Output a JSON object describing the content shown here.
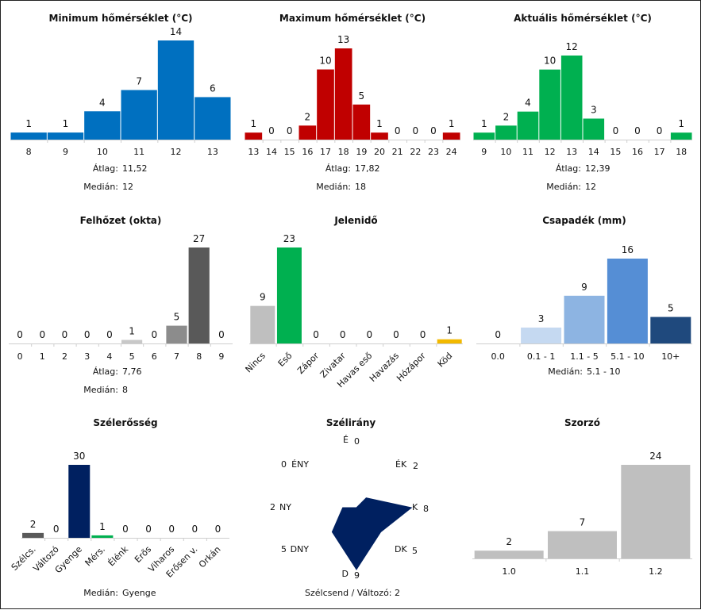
{
  "chart_data": [
    {
      "id": "min",
      "type": "bar",
      "title": "Minimum hőmérséklet (°C)",
      "categories": [
        "8",
        "9",
        "10",
        "11",
        "12",
        "13"
      ],
      "values": [
        1,
        1,
        4,
        7,
        14,
        6
      ],
      "ylim": [
        0,
        14
      ],
      "colors": [
        "#0070c0"
      ],
      "stats": [
        {
          "label": "Átlag:",
          "value": "11,52"
        },
        {
          "label": "Medián:",
          "value": "12"
        }
      ]
    },
    {
      "id": "max",
      "type": "bar",
      "title": "Maximum hőmérséklet (°C)",
      "categories": [
        "13",
        "14",
        "15",
        "16",
        "17",
        "18",
        "19",
        "20",
        "21",
        "22",
        "23",
        "24"
      ],
      "values": [
        1,
        0,
        0,
        2,
        10,
        13,
        5,
        1,
        0,
        0,
        0,
        1
      ],
      "ylim": [
        0,
        13
      ],
      "colors": [
        "#c00000"
      ],
      "stats": [
        {
          "label": "Átlag:",
          "value": "17,82"
        },
        {
          "label": "Medián:",
          "value": "18"
        }
      ]
    },
    {
      "id": "act",
      "type": "bar",
      "title": "Aktuális hőmérséklet (°C)",
      "categories": [
        "9",
        "10",
        "11",
        "12",
        "13",
        "14",
        "15",
        "16",
        "17",
        "18"
      ],
      "values": [
        1,
        2,
        4,
        10,
        12,
        3,
        0,
        0,
        0,
        1
      ],
      "ylim": [
        0,
        12
      ],
      "colors": [
        "#00b050"
      ],
      "stats": [
        {
          "label": "Átlag:",
          "value": "12,39"
        },
        {
          "label": "Medián:",
          "value": "12"
        }
      ]
    },
    {
      "id": "cloud",
      "type": "bar",
      "title": "Felhőzet (okta)",
      "categories": [
        "0",
        "1",
        "2",
        "3",
        "4",
        "5",
        "6",
        "7",
        "8",
        "9"
      ],
      "values": [
        0,
        0,
        0,
        0,
        0,
        1,
        0,
        5,
        27,
        0
      ],
      "ylim": [
        0,
        27
      ],
      "colors": [
        "#d9d9d9",
        "#d9d9d9",
        "#d9d9d9",
        "#d9d9d9",
        "#d9d9d9",
        "#c8c8c8",
        "#bfbfbf",
        "#8c8c8c",
        "#595959",
        "#595959"
      ],
      "stats": [
        {
          "label": "Átlag:",
          "value": "7,76"
        },
        {
          "label": "Medián:",
          "value": "8"
        }
      ]
    },
    {
      "id": "wx",
      "type": "bar",
      "title": "Jelenidő",
      "categories": [
        "Nincs",
        "Eső",
        "Zápor",
        "Zivatar",
        "Havas eső",
        "Havazás",
        "Hózápor",
        "Köd"
      ],
      "values": [
        9,
        23,
        0,
        0,
        0,
        0,
        0,
        1
      ],
      "ylim": [
        0,
        23
      ],
      "colors": [
        "#bfbfbf",
        "#00b050",
        "#00b050",
        "#00b050",
        "#00b050",
        "#00b050",
        "#00b050",
        "#f2b900"
      ],
      "stats": []
    },
    {
      "id": "precip",
      "type": "bar",
      "title": "Csapadék (mm)",
      "categories": [
        "0.0",
        "0.1 - 1",
        "1.1 - 5",
        "5.1 - 10",
        "10+"
      ],
      "values": [
        0,
        3,
        9,
        16,
        5
      ],
      "ylim": [
        0,
        16
      ],
      "colors": [
        "#dce6f2",
        "#c5d9f1",
        "#8db4e2",
        "#558ed5",
        "#1f497d"
      ],
      "stats": [
        {
          "label": "Medián:",
          "value": "5.1 - 10"
        }
      ]
    },
    {
      "id": "wind",
      "type": "bar",
      "title": "Szélerősség",
      "categories": [
        "Szélcs.",
        "Változó",
        "Gyenge",
        "Mérs.",
        "Élénk",
        "Erős",
        "Viharos",
        "Erősen v.",
        "Orkán"
      ],
      "values": [
        2,
        0,
        30,
        1,
        0,
        0,
        0,
        0,
        0
      ],
      "ylim": [
        0,
        30
      ],
      "colors": [
        "#595959",
        "#595959",
        "#002060",
        "#00b050",
        "#00b050",
        "#00b050",
        "#00b050",
        "#00b050",
        "#00b050"
      ],
      "stats": [
        {
          "label": "Medián:",
          "value": "Gyenge"
        }
      ]
    },
    {
      "id": "dir",
      "type": "radar",
      "title": "Szélirány",
      "axes": [
        {
          "label": "É",
          "value": 0
        },
        {
          "label": "ÉK",
          "value": 2
        },
        {
          "label": "K",
          "value": 8
        },
        {
          "label": "DK",
          "value": 5
        },
        {
          "label": "D",
          "value": 9
        },
        {
          "label": "DNY",
          "value": 5
        },
        {
          "label": "NY",
          "value": 2
        },
        {
          "label": "ÉNY",
          "value": 0
        }
      ],
      "max": 9,
      "color": "#002060",
      "note": "Szélcsend / Változó: 2"
    },
    {
      "id": "mult",
      "type": "bar",
      "title": "Szorzó",
      "categories": [
        "1.0",
        "1.1",
        "1.2"
      ],
      "values": [
        2,
        7,
        24
      ],
      "ylim": [
        0,
        24
      ],
      "colors": [
        "#bfbfbf"
      ],
      "stats": []
    }
  ]
}
